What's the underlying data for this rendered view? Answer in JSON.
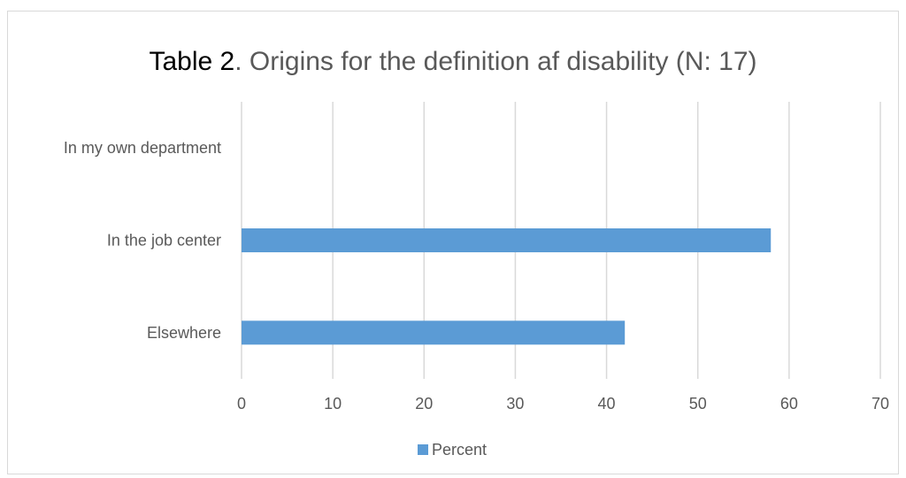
{
  "chart_data": {
    "type": "bar",
    "orientation": "horizontal",
    "title_prefix": "Table 2",
    "title_rest": ". Origins for the definition af disability (N: 17)",
    "categories": [
      "In my own department",
      "In the job center",
      "Elsewhere"
    ],
    "series": [
      {
        "name": "Percent",
        "values": [
          0,
          58,
          42
        ],
        "color": "#5b9bd5"
      }
    ],
    "xlim": [
      0,
      70
    ],
    "xticks": [
      0,
      10,
      20,
      30,
      40,
      50,
      60,
      70
    ],
    "grid": "vertical",
    "legend_position": "bottom",
    "gridline_color": "#d9d9d9"
  }
}
